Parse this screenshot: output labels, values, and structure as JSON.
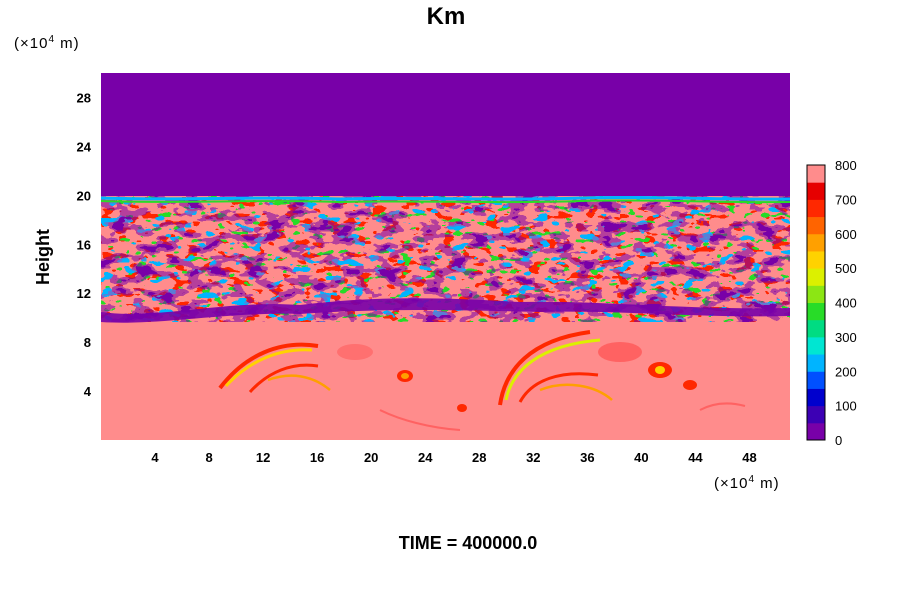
{
  "chart_data": {
    "type": "heatmap",
    "title": "Km",
    "ylabel": "Height",
    "x_unit": {
      "prefix": "(×10",
      "exp": "4",
      "suffix": " m)"
    },
    "y_unit": {
      "prefix": "(×10",
      "exp": "4",
      "suffix": " m)"
    },
    "xlim": [
      0,
      51
    ],
    "ylim": [
      0,
      30
    ],
    "x_ticks": [
      4,
      8,
      12,
      16,
      20,
      24,
      28,
      32,
      36,
      40,
      44,
      48
    ],
    "y_ticks": [
      4,
      8,
      12,
      16,
      20,
      24,
      28
    ],
    "colorbar": {
      "min": 0,
      "max": 800,
      "ticks": [
        0,
        100,
        200,
        300,
        400,
        500,
        600,
        700,
        800
      ],
      "colors": [
        "#7800a8",
        "#3c00b4",
        "#0000cd",
        "#0050ff",
        "#00b4ff",
        "#00e6d2",
        "#00dc82",
        "#28dc28",
        "#8ce614",
        "#dcf000",
        "#ffd200",
        "#ffa000",
        "#ff6400",
        "#ff2800",
        "#e60000",
        "#ff8c8c"
      ]
    },
    "regions": [
      {
        "name": "upper layer",
        "y_range": [
          19.5,
          30
        ],
        "value": 0
      },
      {
        "name": "turbulent band",
        "y_range": [
          9.5,
          19.5
        ],
        "value_range": [
          0,
          800
        ]
      },
      {
        "name": "lower layer",
        "y_range": [
          0,
          9.5
        ],
        "value": 800
      }
    ],
    "footer": "TIME = 400000.0"
  }
}
